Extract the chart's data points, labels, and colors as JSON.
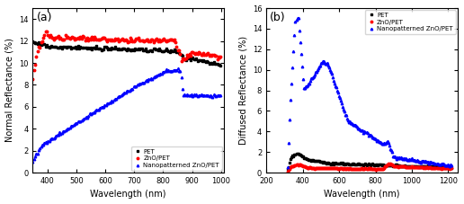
{
  "panel_a": {
    "label": "(a)",
    "xlabel": "Wavelength (nm)",
    "ylabel": "Normal Reflectance (%)",
    "xlim": [
      350,
      1010
    ],
    "ylim": [
      0,
      15
    ],
    "yticks": [
      0,
      2,
      4,
      6,
      8,
      10,
      12,
      14
    ],
    "xticks": [
      400,
      500,
      600,
      700,
      800,
      900,
      1000
    ],
    "legend": [
      "PET",
      "ZnO/PET",
      "Nanopatterned ZnO/PET"
    ],
    "colors": [
      "black",
      "red",
      "blue"
    ],
    "markers": [
      "s",
      "o",
      "^"
    ]
  },
  "panel_b": {
    "label": "(b)",
    "xlabel": "Wavelength (nm)",
    "ylabel": "Diffused Reflectance (%)",
    "xlim": [
      200,
      1250
    ],
    "ylim": [
      0,
      16
    ],
    "yticks": [
      0,
      2,
      4,
      6,
      8,
      10,
      12,
      14,
      16
    ],
    "xticks": [
      200,
      400,
      600,
      800,
      1000,
      1200
    ],
    "legend": [
      "PET",
      "ZnO/PET",
      "Nanopatterned ZnO/PET"
    ],
    "colors": [
      "black",
      "red",
      "blue"
    ],
    "markers": [
      "s",
      "o",
      "^"
    ]
  }
}
